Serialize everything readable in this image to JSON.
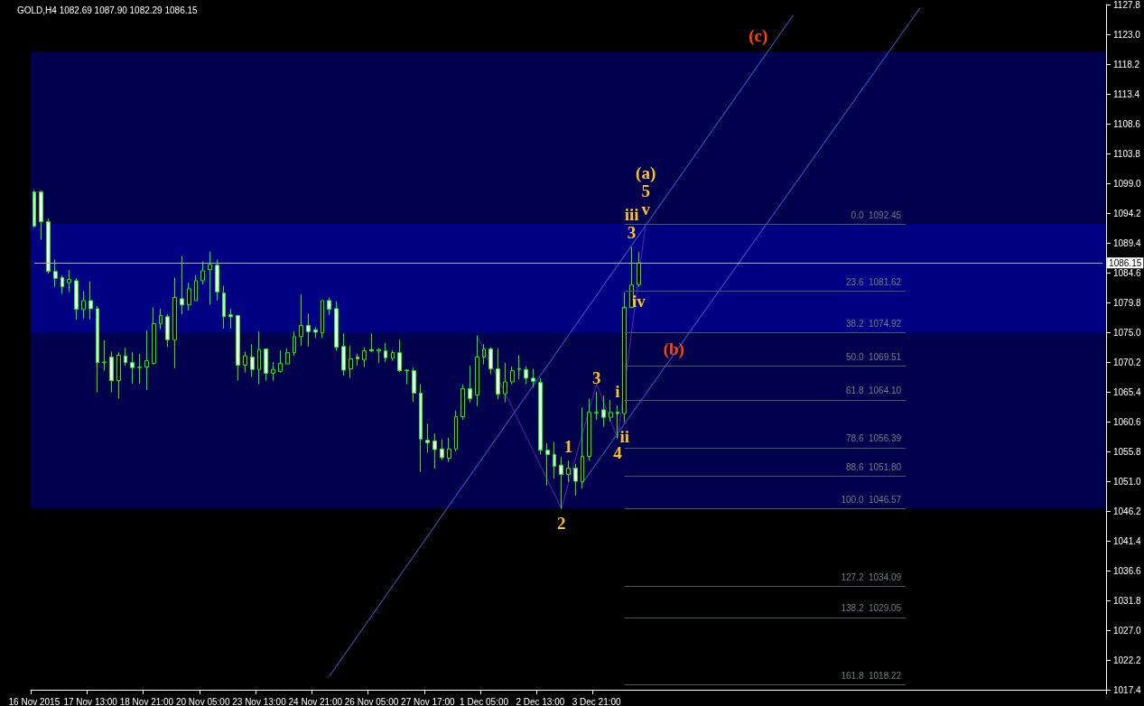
{
  "chart_data": {
    "type": "candlestick",
    "title": "GOLD,H4 1082.69 1087.90 1082.29 1086.15",
    "categories": [
      "16 Nov 2015",
      null,
      null,
      null,
      null,
      null,
      null,
      null,
      "17 Nov 13:00",
      null,
      null,
      null,
      null,
      null,
      null,
      null,
      "18 Nov 21:00",
      null,
      null,
      null,
      null,
      null,
      null,
      null,
      "20 Nov 05:00",
      null,
      null,
      null,
      null,
      null,
      null,
      null,
      "23 Nov 13:00",
      null,
      null,
      null,
      null,
      null,
      null,
      null,
      "24 Nov 21:00",
      null,
      null,
      null,
      null,
      null,
      null,
      null,
      "26 Nov 05:00",
      null,
      null,
      null,
      null,
      null,
      null,
      null,
      "27 Nov 17:00",
      null,
      null,
      null,
      null,
      null,
      null,
      null,
      "1 Dec 05:00",
      null,
      null,
      null,
      null,
      null,
      null,
      null,
      "2 Dec 13:00",
      null,
      null,
      null,
      null,
      null,
      null,
      null,
      "3 Dec 21:00",
      null,
      null,
      null,
      null,
      null,
      null,
      null,
      null,
      null,
      null,
      null,
      null,
      null,
      null,
      null,
      null,
      null,
      null,
      null,
      null,
      null,
      null,
      null,
      null,
      null,
      null,
      null,
      null,
      null,
      null,
      null,
      null,
      null,
      null,
      null,
      null,
      null,
      null,
      null,
      null,
      null,
      null,
      null,
      null,
      null,
      null,
      null,
      null,
      null,
      null,
      null,
      null,
      null,
      null,
      null,
      null,
      null,
      null,
      null,
      null,
      null,
      null,
      null,
      null,
      null,
      null,
      null,
      null,
      null,
      null,
      null,
      null
    ],
    "ohlc": [
      [
        1097.6,
        1097.9,
        1091.9,
        1092.1
      ],
      [
        1097.6,
        1097.85,
        1089.9,
        1092.8
      ],
      [
        1092.8,
        1093.3,
        1084.5,
        1084.8
      ],
      [
        1084.8,
        1086.7,
        1082.3,
        1083.7
      ],
      [
        1083.8,
        1084.1,
        1081.2,
        1082.3
      ],
      [
        1083.0,
        1085.0,
        1081.5,
        1083.5
      ],
      [
        1083.3,
        1083.7,
        1077.0,
        1078.7
      ],
      [
        1078.65,
        1081.6,
        1077.2,
        1080.1
      ],
      [
        1080.1,
        1083.2,
        1077.05,
        1078.8
      ],
      [
        1078.8,
        1079.2,
        1065.3,
        1070.1
      ],
      [
        1070.1,
        1073.7,
        1068.8,
        1070.2
      ],
      [
        1071.0,
        1071.9,
        1065.3,
        1067.2
      ],
      [
        1067.2,
        1071.8,
        1064.3,
        1071.3
      ],
      [
        1071.2,
        1072.5,
        1069.6,
        1070.1
      ],
      [
        1070.1,
        1071.8,
        1066.7,
        1069.3
      ],
      [
        1069.3,
        1071.5,
        1066.7,
        1069.4
      ],
      [
        1069.4,
        1075.3,
        1065.7,
        1070.4
      ],
      [
        1070.0,
        1079.0,
        1069.8,
        1076.4
      ],
      [
        1076.4,
        1078.8,
        1075.5,
        1077.7
      ],
      [
        1077.5,
        1077.9,
        1072.6,
        1073.8
      ],
      [
        1073.8,
        1083.8,
        1069.2,
        1080.6
      ],
      [
        1080.4,
        1087.3,
        1077.9,
        1079.4
      ],
      [
        1079.4,
        1083.0,
        1078.5,
        1082.0
      ],
      [
        1080.1,
        1084.2,
        1080.1,
        1083.3
      ],
      [
        1083.3,
        1086.4,
        1082.7,
        1084.9
      ],
      [
        1085.1,
        1088.0,
        1079.4,
        1085.9
      ],
      [
        1085.8,
        1086.7,
        1080.1,
        1081.5
      ],
      [
        1081.3,
        1082.5,
        1075.6,
        1077.5
      ],
      [
        1077.8,
        1078.8,
        1075.6,
        1077.5
      ],
      [
        1077.7,
        1077.7,
        1067.2,
        1069.7
      ],
      [
        1069.7,
        1071.9,
        1068.5,
        1071.2
      ],
      [
        1071.0,
        1073.1,
        1067.8,
        1069.0
      ],
      [
        1069.0,
        1075.1,
        1066.6,
        1072.2
      ],
      [
        1072.3,
        1072.3,
        1067.2,
        1068.4
      ],
      [
        1068.4,
        1070.2,
        1067.2,
        1069.0
      ],
      [
        1068.7,
        1072.1,
        1068.5,
        1070.0
      ],
      [
        1069.9,
        1072.4,
        1069.9,
        1071.7
      ],
      [
        1071.7,
        1075.1,
        1071.2,
        1074.3
      ],
      [
        1074.3,
        1081.1,
        1072.8,
        1076.1
      ],
      [
        1076.1,
        1078.0,
        1072.7,
        1075.1
      ],
      [
        1075.4,
        1075.8,
        1074.1,
        1075.0
      ],
      [
        1074.9,
        1080.1,
        1074.1,
        1080.1
      ],
      [
        1080.1,
        1080.6,
        1077.8,
        1078.7
      ],
      [
        1078.8,
        1080.0,
        1072.0,
        1072.6
      ],
      [
        1072.7,
        1074.8,
        1068.0,
        1068.9
      ],
      [
        1069.1,
        1072.8,
        1067.6,
        1070.7
      ],
      [
        1071.0,
        1071.5,
        1069.6,
        1070.7
      ],
      [
        1070.6,
        1072.6,
        1069.4,
        1072.0
      ],
      [
        1072.2,
        1074.8,
        1071.8,
        1072.0
      ],
      [
        1072.0,
        1072.4,
        1070.0,
        1072.2
      ],
      [
        1072.0,
        1073.3,
        1070.2,
        1070.9
      ],
      [
        1070.8,
        1072.1,
        1070.4,
        1071.7
      ],
      [
        1071.7,
        1073.8,
        1068.6,
        1068.8
      ],
      [
        1068.9,
        1069.0,
        1066.6,
        1068.8
      ],
      [
        1068.8,
        1069.3,
        1063.8,
        1065.2
      ],
      [
        1065.2,
        1066.6,
        1052.5,
        1057.8
      ],
      [
        1057.6,
        1060.3,
        1055.6,
        1057.2
      ],
      [
        1057.5,
        1058.7,
        1053.0,
        1056.1
      ],
      [
        1056.2,
        1057.7,
        1054.4,
        1054.8
      ],
      [
        1054.7,
        1058.0,
        1054.1,
        1056.2
      ],
      [
        1056.2,
        1062.4,
        1055.8,
        1061.4
      ],
      [
        1061.4,
        1066.6,
        1060.9,
        1065.9
      ],
      [
        1065.9,
        1069.6,
        1063.7,
        1064.3
      ],
      [
        1064.9,
        1074.5,
        1063.1,
        1071.0
      ],
      [
        1071.0,
        1073.1,
        1069.8,
        1072.3
      ],
      [
        1072.3,
        1072.6,
        1068.2,
        1069.1
      ],
      [
        1069.1,
        1072.4,
        1064.2,
        1065.0
      ],
      [
        1065.1,
        1070.1,
        1063.7,
        1067.0
      ],
      [
        1067.0,
        1069.5,
        1066.6,
        1068.8
      ],
      [
        1069.0,
        1071.3,
        1067.4,
        1069.1
      ],
      [
        1069.0,
        1069.5,
        1066.6,
        1067.6
      ],
      [
        1067.6,
        1069.1,
        1066.1,
        1067.1
      ],
      [
        1066.9,
        1067.6,
        1055.3,
        1056.0
      ],
      [
        1056.0,
        1057.1,
        1050.3,
        1055.3
      ],
      [
        1055.3,
        1057.3,
        1051.4,
        1053.4
      ],
      [
        1053.6,
        1054.9,
        1046.57,
        1052.1
      ],
      [
        1052.1,
        1054.3,
        1050.9,
        1053.1
      ],
      [
        1053.1,
        1053.8,
        1048.7,
        1051.0
      ],
      [
        1050.9,
        1062.9,
        1049.8,
        1055.0
      ],
      [
        1055.0,
        1064.3,
        1054.3,
        1062.1
      ],
      [
        1062.0,
        1065.4,
        1060.9,
        1062.1
      ],
      [
        1062.5,
        1064.8,
        1059.8,
        1061.3
      ],
      [
        1061.3,
        1064.1,
        1060.6,
        1062.1
      ],
      [
        1062.1,
        1063.2,
        1057.9,
        1061.9
      ],
      [
        1061.9,
        1081.4,
        1060.5,
        1079.0
      ],
      [
        1079.0,
        1088.7,
        1079.0,
        1082.6
      ],
      [
        1082.69,
        1087.9,
        1082.29,
        1086.15
      ],
      null,
      null,
      null,
      null,
      null,
      null,
      null,
      null,
      null,
      null,
      null,
      null,
      null,
      null,
      null,
      null,
      null,
      null,
      null,
      null,
      null,
      null,
      null,
      null,
      null,
      null,
      null,
      null,
      null,
      null,
      null,
      null,
      null,
      null,
      null,
      null,
      null,
      null,
      null,
      null,
      null,
      null,
      null,
      null,
      null,
      null,
      null,
      null,
      null,
      null,
      null,
      null,
      null,
      null,
      null,
      null,
      null,
      null,
      null,
      null,
      null,
      null,
      null,
      null,
      null,
      null
    ],
    "color": "#00ff00",
    "series": [
      {
        "type": "line",
        "color": "#4169e1",
        "values": [
          null,
          null,
          null,
          null,
          null,
          null,
          null,
          null,
          null,
          null,
          null,
          null,
          null,
          null,
          null,
          null,
          null,
          null,
          null,
          null,
          null,
          null,
          null,
          null,
          null,
          null,
          null,
          null,
          null,
          null,
          null,
          null,
          null,
          null,
          null,
          null,
          null,
          null,
          null,
          null,
          null,
          null,
          1019.6,
          null,
          null,
          null,
          null,
          null,
          null,
          null,
          null,
          null,
          null,
          null,
          null,
          null,
          null,
          null,
          null,
          null,
          null,
          null,
          null,
          null,
          null,
          null,
          null,
          null,
          null,
          null,
          null,
          null,
          null,
          null,
          null,
          null,
          null,
          null,
          null,
          null,
          null,
          null,
          null,
          null,
          null,
          null,
          null,
          null,
          null,
          null,
          null,
          null,
          null,
          null,
          null,
          null,
          null,
          null,
          null,
          null,
          null,
          null,
          null,
          null,
          null,
          null,
          null,
          null,
          1126.1,
          null,
          null,
          null,
          null,
          null,
          null,
          null,
          null,
          null,
          null,
          null,
          null,
          null,
          null,
          null,
          null,
          null,
          null,
          null,
          null,
          null,
          null,
          null,
          null,
          null,
          null,
          null,
          null,
          null,
          null,
          null,
          null,
          null,
          null,
          null,
          null,
          null,
          null,
          null,
          null,
          null,
          null,
          null,
          null
        ]
      },
      {
        "type": "line",
        "color": "#4169e1",
        "values": [
          null,
          null,
          null,
          null,
          null,
          null,
          null,
          null,
          null,
          null,
          null,
          null,
          null,
          null,
          null,
          null,
          null,
          null,
          null,
          null,
          null,
          null,
          null,
          null,
          null,
          null,
          null,
          null,
          null,
          null,
          null,
          null,
          null,
          null,
          null,
          null,
          null,
          null,
          null,
          null,
          null,
          null,
          null,
          null,
          null,
          null,
          null,
          null,
          null,
          null,
          null,
          null,
          null,
          null,
          null,
          null,
          null,
          null,
          null,
          null,
          null,
          null,
          null,
          null,
          null,
          null,
          null,
          null,
          null,
          null,
          null,
          null,
          null,
          null,
          null,
          null,
          null,
          null,
          1050.7,
          null,
          null,
          null,
          null,
          null,
          null,
          null,
          null,
          null,
          null,
          null,
          null,
          null,
          null,
          null,
          null,
          null,
          null,
          null,
          null,
          null,
          null,
          null,
          null,
          null,
          null,
          null,
          null,
          null,
          null,
          null,
          null,
          null,
          null,
          null,
          null,
          null,
          null,
          null,
          null,
          null,
          null,
          null,
          null,
          null,
          null,
          null,
          1127.2,
          null,
          null,
          null,
          null,
          null,
          null,
          null,
          null,
          null,
          null,
          null,
          null,
          null,
          null,
          null,
          null,
          null,
          null,
          null,
          null,
          null,
          null,
          null,
          null,
          null,
          null
        ]
      },
      {
        "type": "line",
        "color": "#6a1fb0",
        "values": [
          null,
          null,
          null,
          null,
          null,
          null,
          null,
          null,
          null,
          null,
          null,
          null,
          null,
          null,
          null,
          null,
          null,
          null,
          null,
          null,
          null,
          null,
          null,
          null,
          null,
          null,
          null,
          null,
          null,
          null,
          null,
          null,
          null,
          null,
          null,
          null,
          null,
          null,
          null,
          null,
          null,
          null,
          null,
          null,
          null,
          null,
          null,
          null,
          null,
          null,
          null,
          null,
          null,
          null,
          null,
          null,
          null,
          null,
          null,
          null,
          null,
          null,
          null,
          1074.5,
          null,
          null,
          null,
          null,
          null,
          null,
          null,
          null,
          null,
          null,
          null,
          1046.6,
          null,
          null,
          null,
          null,
          1066.7,
          null,
          null,
          1057.9,
          null,
          null,
          null,
          1092.5,
          null,
          null,
          null,
          null,
          null,
          null,
          null,
          null,
          null,
          null,
          null,
          null,
          null,
          null,
          null,
          null,
          null,
          null,
          null,
          null,
          null,
          null,
          null,
          null,
          null,
          null,
          null,
          null,
          null,
          null,
          null,
          null,
          null,
          null,
          null,
          null,
          null,
          null,
          null,
          null,
          null,
          null,
          null,
          null,
          null,
          null,
          null,
          null,
          null,
          null,
          null,
          null,
          null,
          null,
          null,
          null,
          null,
          null,
          null,
          null,
          null,
          null,
          null,
          null,
          null
        ]
      }
    ],
    "ylim": [
      1017.4,
      1127.8
    ],
    "yticks": [
      1017.4,
      1022.2,
      {
        "value": 1027,
        "label": "1027.0"
      },
      1031.8,
      1036.6,
      1041.4,
      1046.2,
      {
        "value": 1051,
        "label": "1051.0"
      },
      1055.8,
      1060.6,
      1065.4,
      1070.2,
      {
        "value": 1075,
        "label": "1075.0"
      },
      1079.8,
      1084.6,
      1089.4,
      1094.2,
      {
        "value": 1099,
        "label": "1099.0"
      },
      1103.8,
      1108.6,
      1113.4,
      1118.2,
      {
        "value": 1123,
        "label": "1123.0"
      },
      1127.8
    ],
    "bands": [
      {
        "axis": "y",
        "from": 1046.57,
        "to": 1092.45,
        "color": "#0000ff"
      },
      {
        "axis": "y",
        "from": 1074.92,
        "to": 1120.2,
        "color": "#0000ff"
      }
    ],
    "ref_lines": [
      {
        "axis": "y",
        "value": 1086.15,
        "label": "1086.15",
        "color": "#b0b0b0"
      },
      {
        "axis": "y",
        "value": 1092.45,
        "label": "0.0  1092.45",
        "color": "#3d5f5f"
      },
      {
        "axis": "y",
        "value": 1081.62,
        "label": "23.6  1081.62",
        "color": "#3d5f5f"
      },
      {
        "axis": "y",
        "value": 1074.92,
        "label": "38.2  1074.92",
        "color": "#3d5f5f"
      },
      {
        "axis": "y",
        "value": 1069.51,
        "label": "50.0  1069.51",
        "color": "#3d5f5f"
      },
      {
        "axis": "y",
        "value": 1064.1,
        "label": "61.8  1064.10",
        "color": "#3d5f5f"
      },
      {
        "axis": "y",
        "value": 1056.39,
        "label": "78.6  1056.39",
        "color": "#3d5f5f"
      },
      {
        "axis": "y",
        "value": 1051.8,
        "label": "88.6  1051.80",
        "color": "#3d5f5f"
      },
      {
        "axis": "y",
        "value": 1046.57,
        "label": "100.0  1046.57",
        "color": "#3d5f5f"
      },
      {
        "axis": "y",
        "value": 1034.09,
        "label": "127.2  1034.09",
        "color": "#3d5f5f"
      },
      {
        "axis": "y",
        "value": 1029.05,
        "label": "138.2  1029.05",
        "color": "#3d5f5f"
      },
      {
        "axis": "y",
        "value": 1018.22,
        "label": "161.8  1018.22",
        "color": "#3d5f5f"
      }
    ],
    "annotations": [
      {
        "text": "2",
        "y": 1046.57
      },
      {
        "text": "1",
        "y": 1054.3
      },
      {
        "text": "3",
        "y": 1065.4
      },
      {
        "text": "i",
        "y": 1063.2
      },
      {
        "text": "4",
        "y": 1057.9
      },
      {
        "text": "ii",
        "y": 1060.5
      },
      {
        "text": "3",
        "y": 1088.7
      },
      {
        "text": "iii",
        "y": 1088.7
      },
      {
        "text": "iv",
        "y": 1082.29
      },
      {
        "text": "v",
        "y": 1092.5
      },
      {
        "text": "5",
        "y": 1092.5
      },
      {
        "text": "(a)",
        "y": 1092.5
      },
      "(b)",
      "(c)"
    ]
  }
}
